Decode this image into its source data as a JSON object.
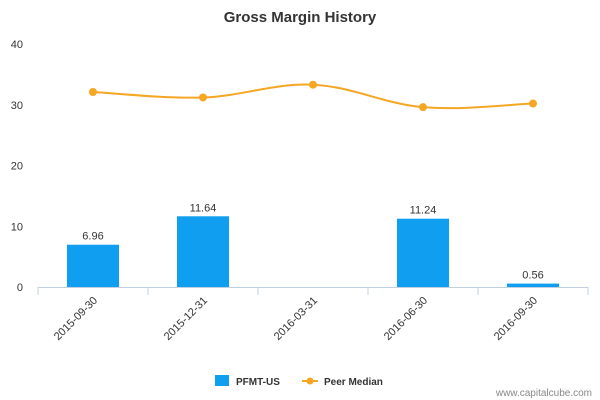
{
  "chart_data": {
    "type": "bar",
    "title": "Gross Margin History",
    "categories": [
      "2015-09-30",
      "2015-12-31",
      "2016-03-31",
      "2016-06-30",
      "2016-09-30"
    ],
    "ylim": [
      0,
      40
    ],
    "yticks": [
      0,
      10,
      20,
      30,
      40
    ],
    "grid": false,
    "legend_position": "bottom",
    "series": [
      {
        "name": "PFMT-US",
        "type": "bar",
        "color": "#109ef0",
        "values": [
          6.96,
          11.64,
          null,
          11.24,
          0.56
        ],
        "labels": [
          "6.96",
          "11.64",
          "",
          "11.24",
          "0.56"
        ]
      },
      {
        "name": "Peer Median",
        "type": "line",
        "color": "#f5a623",
        "values": [
          32.1,
          31.2,
          33.3,
          29.6,
          30.2
        ]
      }
    ]
  },
  "watermark": "www.capitalcube.com"
}
